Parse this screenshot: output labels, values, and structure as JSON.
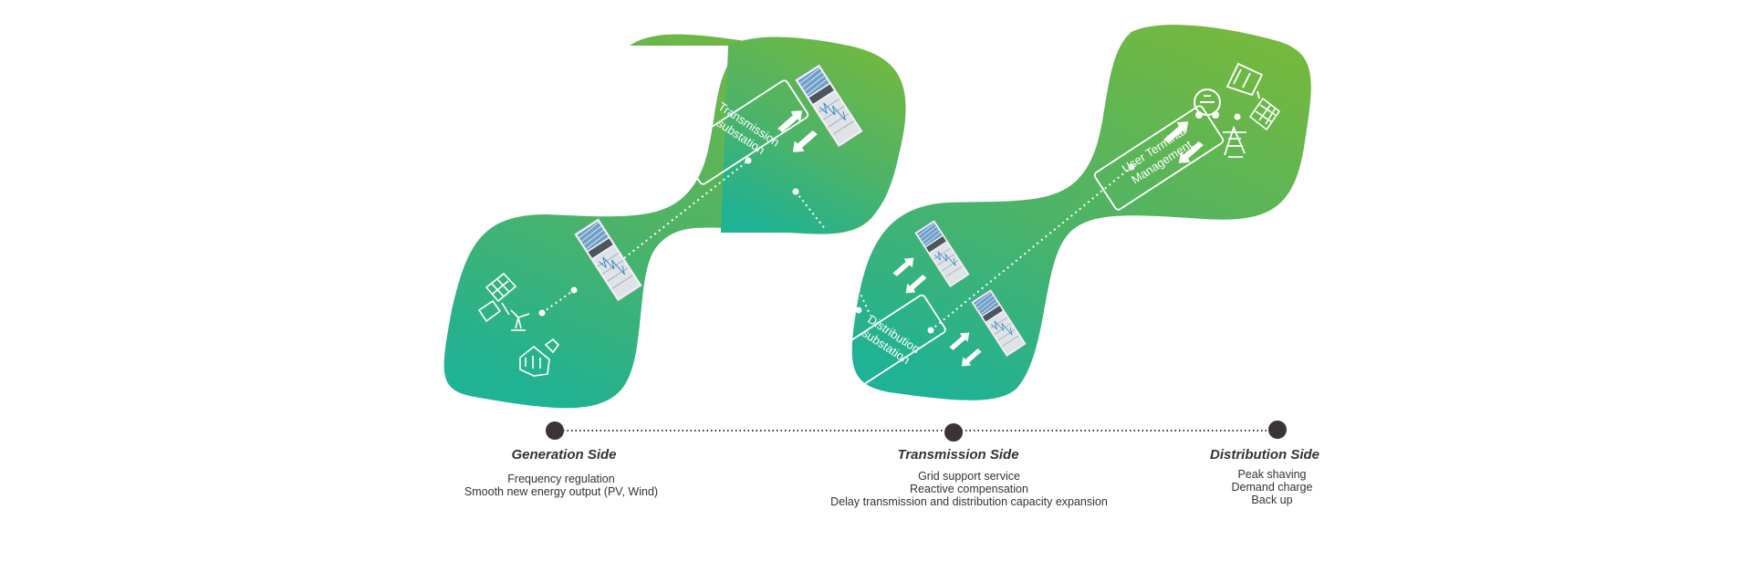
{
  "colors": {
    "green_top": "#72b83f",
    "green_bottom": "#1fb294",
    "timeline_dot": "#3b3434",
    "text": "#333333"
  },
  "nodes": {
    "transmission_substation": "Transmission substation",
    "distribution_substation": "Distribution substation",
    "user_terminal": "User Terminal Management"
  },
  "icons": {
    "generation": [
      "solar-panel-icon",
      "wind-turbine-icon",
      "factory-icon"
    ],
    "user": [
      "electric-car-icon",
      "factory-icon",
      "solar-panel-icon",
      "power-tower-icon"
    ],
    "battery": "battery-cabinet-icon",
    "arrows": "bidirectional-arrow-icon"
  },
  "stages": [
    {
      "title": "Generation Side",
      "items": [
        "Frequency regulation",
        "Smooth new energy output (PV, Wind)"
      ]
    },
    {
      "title": "Transmission Side",
      "items": [
        "Grid support service",
        "Reactive compensation",
        "Delay transmission and distribution capacity expansion"
      ]
    },
    {
      "title": "Distribution Side",
      "items": [
        "Peak shaving",
        "Demand charge",
        "Back up"
      ]
    }
  ]
}
